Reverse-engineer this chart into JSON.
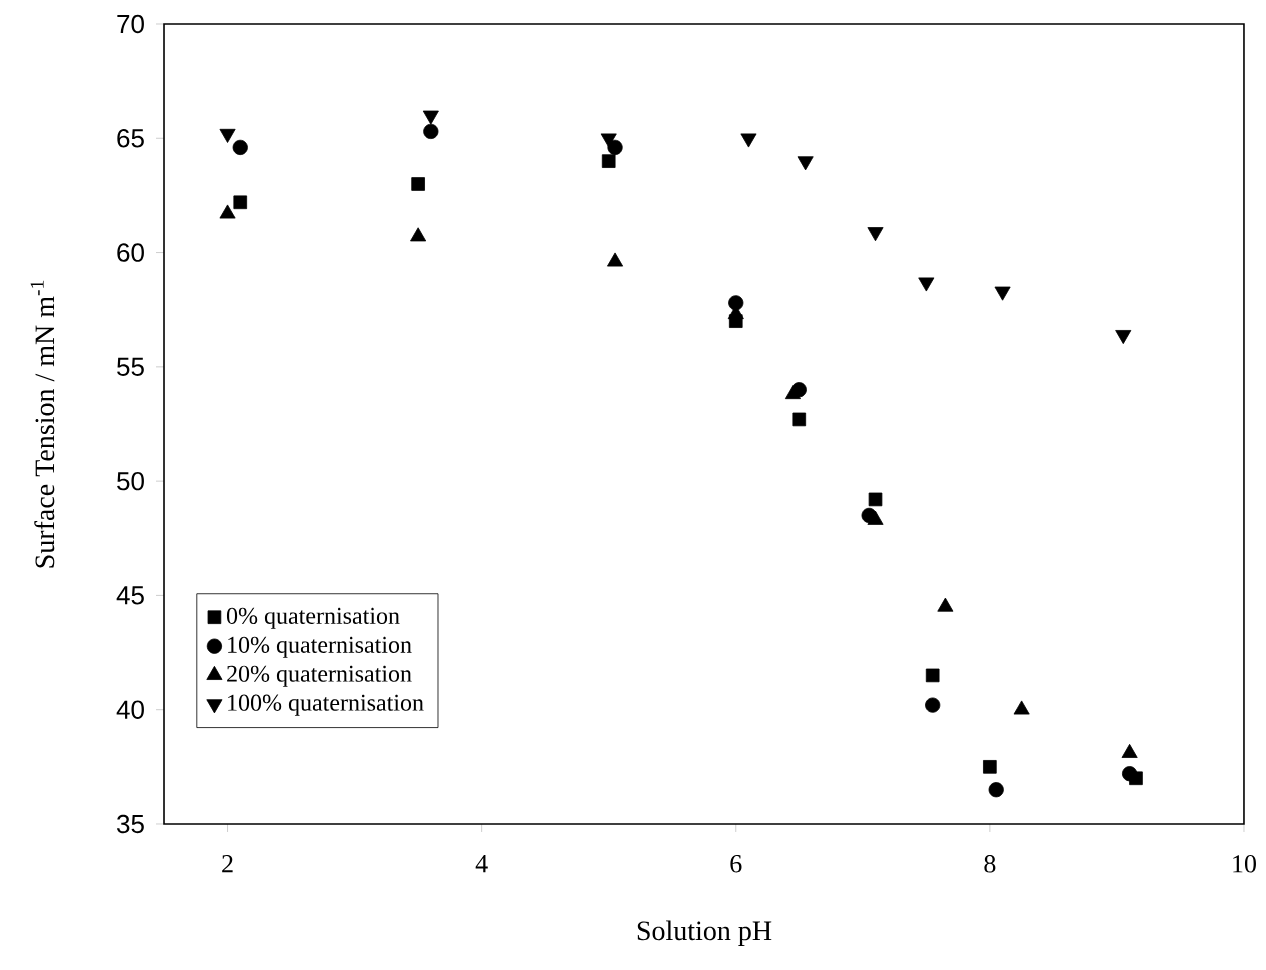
{
  "chart_data": {
    "type": "scatter",
    "xlabel": "Solution pH",
    "ylabel": "Surface Tension / mN m$^{-1}$",
    "xlim": [
      1.5,
      10
    ],
    "ylim": [
      35,
      70
    ],
    "xticks": [
      2,
      4,
      6,
      8,
      10
    ],
    "yticks": [
      35,
      40,
      45,
      50,
      55,
      60,
      65,
      70
    ],
    "grid": false,
    "legend": "bottom left",
    "series": [
      {
        "name": "0% quaternisation",
        "color": "#000000",
        "marker": "square",
        "x": [
          2.1,
          3.5,
          5.0,
          6.0,
          6.5,
          7.1,
          7.55,
          8.0,
          9.15
        ],
        "values": [
          62.2,
          63.0,
          64.0,
          57.0,
          52.7,
          49.2,
          41.5,
          37.5,
          37.0
        ]
      },
      {
        "name": "10% quaternisation",
        "color": "#000000",
        "marker": "circle",
        "x": [
          2.1,
          3.6,
          5.05,
          6.0,
          6.5,
          7.05,
          7.55,
          8.05,
          9.1
        ],
        "values": [
          64.6,
          65.3,
          64.6,
          57.8,
          54.0,
          48.5,
          40.2,
          36.5,
          37.2
        ]
      },
      {
        "name": "20% quaternisation",
        "color": "#000000",
        "marker": "triangle",
        "x": [
          2.0,
          3.5,
          5.05,
          6.0,
          6.45,
          7.1,
          7.65,
          8.25,
          9.1
        ],
        "values": [
          61.7,
          60.7,
          59.6,
          57.3,
          53.8,
          48.3,
          44.5,
          40.0,
          38.1
        ]
      },
      {
        "name": "100% quaternisation",
        "color": "#000000",
        "marker": "triangle down",
        "x": [
          2.0,
          3.6,
          5.0,
          6.1,
          6.55,
          7.1,
          7.5,
          8.1,
          9.05
        ],
        "values": [
          65.2,
          66.0,
          65.0,
          65.0,
          64.0,
          60.9,
          58.7,
          58.3,
          56.4
        ]
      }
    ]
  }
}
